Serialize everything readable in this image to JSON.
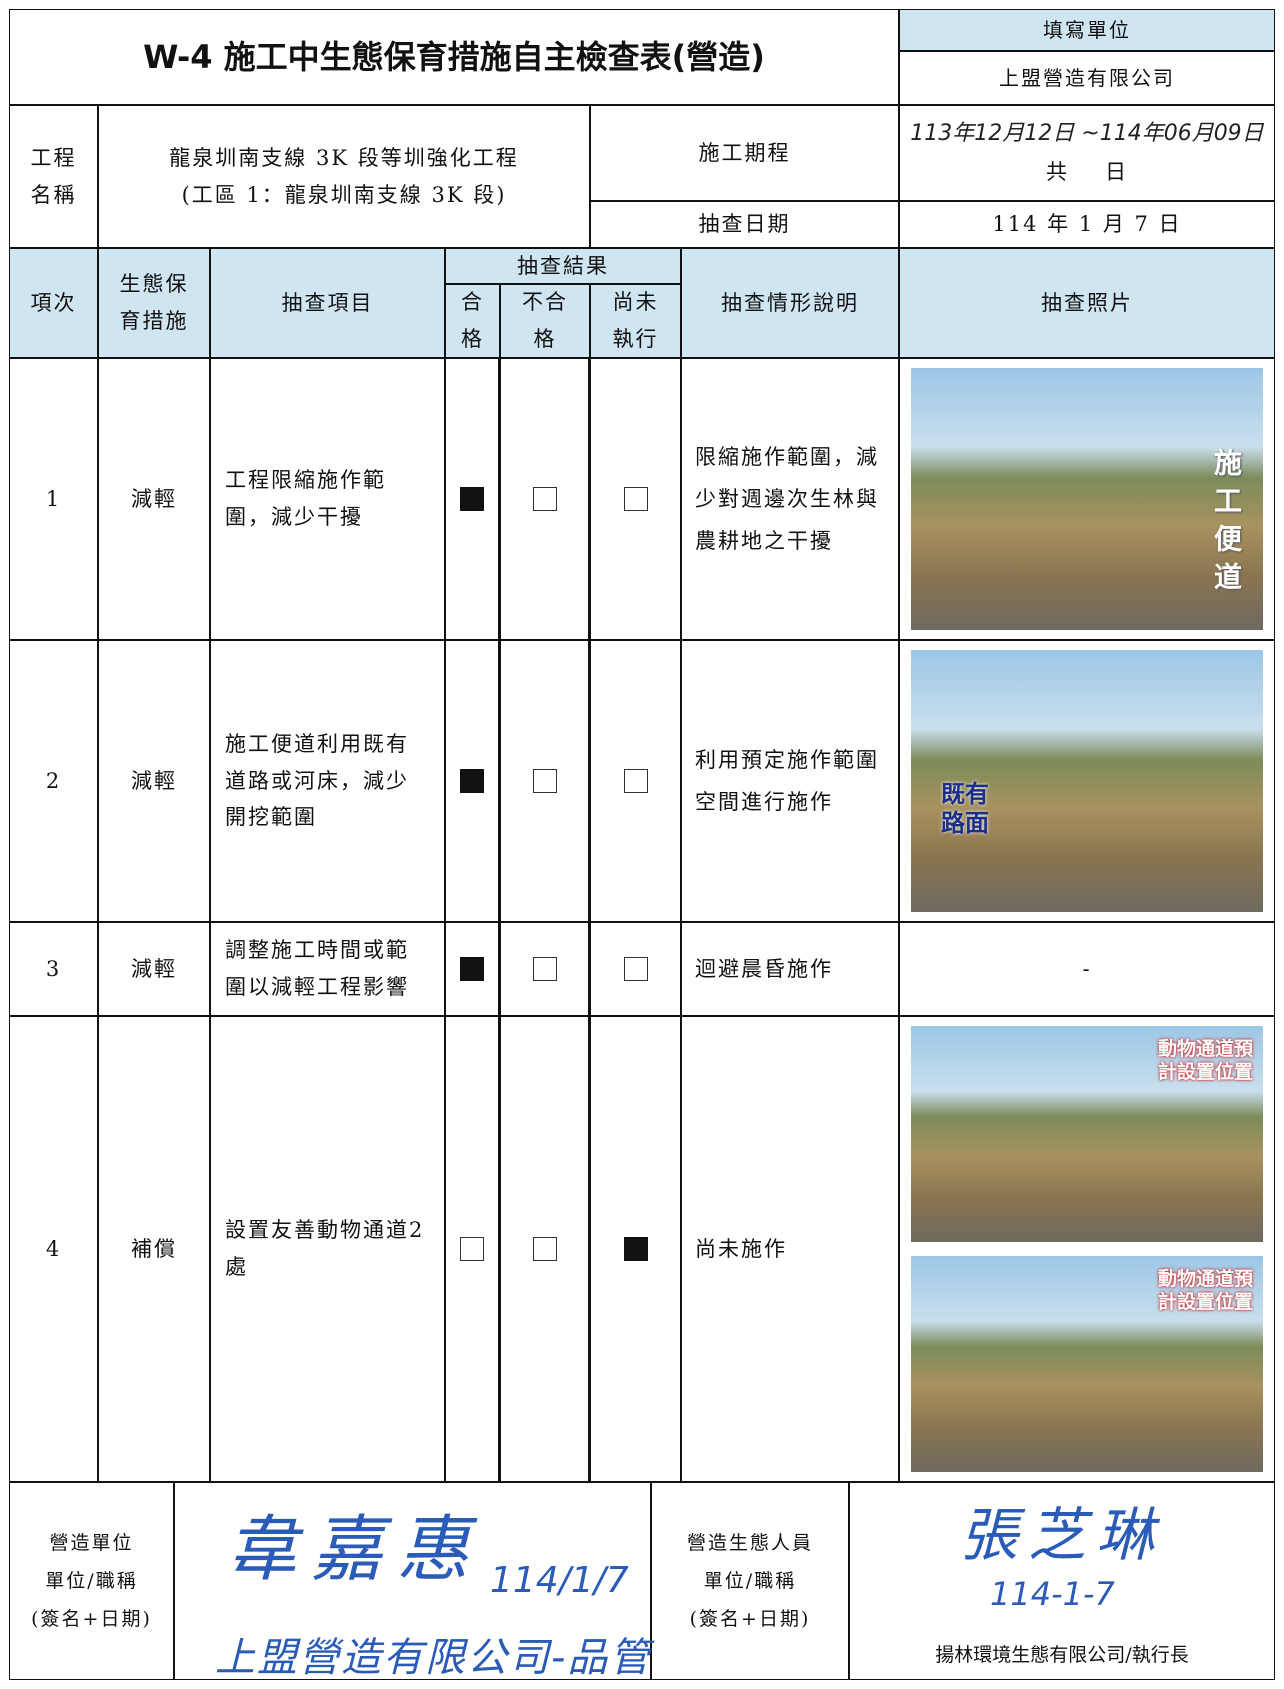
{
  "header": {
    "title": "W-4 施工中生態保育措施自主檢查表(營造)",
    "fill_unit_label": "填寫單位",
    "fill_unit": "上盟營造有限公司"
  },
  "info": {
    "project_label": "工程名稱",
    "project_name": "龍泉圳南支線 3K 段等圳強化工程",
    "project_area": "(工區 1：龍泉圳南支線 3K 段)",
    "period_label": "施工期程",
    "period": "113年12月12日 ~114年06月09日",
    "total_prefix": "共",
    "total_suffix": "日",
    "inspect_date_label": "抽查日期",
    "inspect_date": "114 年 1 月 7 日"
  },
  "table": {
    "columns": {
      "no": "項次",
      "measure": "生態保育措施",
      "item": "抽查項目",
      "result": "抽查結果",
      "pass": "合格",
      "fail": "不合格",
      "pending": "尚未執行",
      "description": "抽查情形說明",
      "photos": "抽查照片"
    },
    "rows": [
      {
        "no": "1",
        "measure": "減輕",
        "item": "工程限縮施作範圍，減少干擾",
        "checks": [
          true,
          false,
          false
        ],
        "description": "限縮施作範圍，減少對週邊次生林與農耕地之干擾",
        "photos": [
          {
            "caption": "施工便道"
          }
        ]
      },
      {
        "no": "2",
        "measure": "減輕",
        "item": "施工便道利用既有道路或河床，減少開挖範圍",
        "checks": [
          true,
          false,
          false
        ],
        "description": "利用預定施作範圍空間進行施作",
        "photos": [
          {
            "caption": "既有路面"
          }
        ]
      },
      {
        "no": "3",
        "measure": "減輕",
        "item": "調整施工時間或範圍以減輕工程影響",
        "checks": [
          true,
          false,
          false
        ],
        "description": "迴避晨昏施作",
        "photo_note": "-"
      },
      {
        "no": "4",
        "measure": "補償",
        "item": "設置友善動物通道2處",
        "checks": [
          false,
          false,
          true
        ],
        "description": "尚未施作",
        "photos": [
          {
            "caption": "動物通道預計設置位置"
          },
          {
            "caption": "動物通道預計設置位置"
          }
        ]
      }
    ]
  },
  "footer": {
    "left": {
      "labels": [
        "營造單位",
        "單位/職稱",
        "(簽名+日期)"
      ],
      "signature": "韋嘉惠",
      "sign_date": "114/1/7",
      "sign_unit": "上盟營造有限公司-品管"
    },
    "right": {
      "labels": [
        "營造生態人員",
        "單位/職稱",
        "(簽名+日期)"
      ],
      "signature": "張芝琳",
      "sign_date": "114-1-7",
      "unit_title": "揚林環境生態有限公司/執行長"
    }
  }
}
